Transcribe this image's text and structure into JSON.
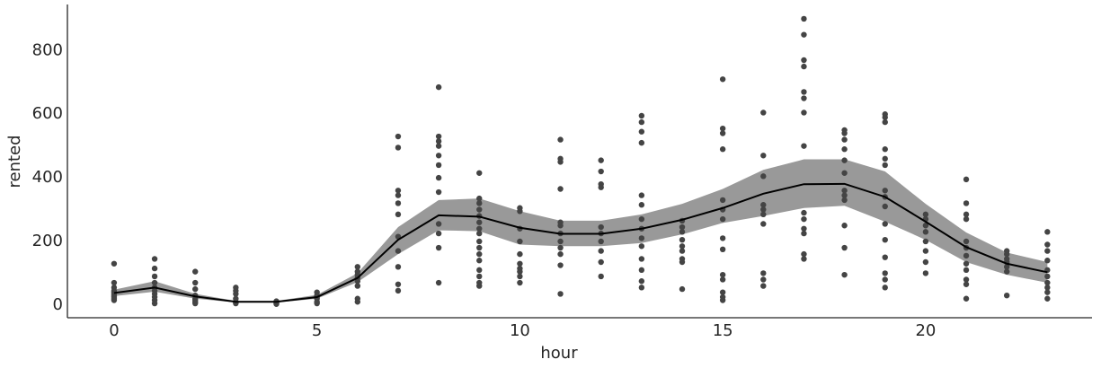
{
  "chart_data": {
    "type": "line",
    "x_label": "hour",
    "y_label": "rented",
    "x": [
      0,
      1,
      2,
      3,
      4,
      5,
      6,
      7,
      8,
      9,
      10,
      11,
      12,
      13,
      14,
      15,
      16,
      17,
      18,
      19,
      20,
      21,
      22,
      23
    ],
    "series": [
      {
        "color": "#000000",
        "values": [
          38,
          55,
          27,
          10,
          10,
          25,
          85,
          205,
          282,
          278,
          243,
          224,
          224,
          240,
          268,
          305,
          350,
          380,
          381,
          340,
          262,
          182,
          130,
          103
        ]
      }
    ],
    "band": {
      "color": "#999999",
      "lower": [
        28,
        42,
        20,
        8,
        8,
        20,
        72,
        160,
        235,
        232,
        190,
        185,
        185,
        195,
        222,
        258,
        280,
        305,
        312,
        262,
        205,
        135,
        95,
        70
      ],
      "upper": [
        48,
        75,
        35,
        13,
        13,
        32,
        100,
        245,
        330,
        335,
        295,
        265,
        265,
        285,
        318,
        365,
        425,
        458,
        458,
        420,
        318,
        228,
        165,
        135
      ]
    },
    "points": {
      "color": "#444444",
      "x": [
        0,
        0,
        0,
        0,
        0,
        0,
        0,
        0,
        0,
        0,
        1,
        1,
        1,
        1,
        1,
        1,
        1,
        1,
        1,
        1,
        2,
        2,
        2,
        2,
        2,
        2,
        2,
        2,
        3,
        3,
        3,
        3,
        3,
        3,
        4,
        4,
        4,
        4,
        5,
        5,
        5,
        5,
        5,
        5,
        6,
        6,
        6,
        6,
        6,
        6,
        6,
        6,
        7,
        7,
        7,
        7,
        7,
        7,
        7,
        7,
        7,
        7,
        7,
        8,
        8,
        8,
        8,
        8,
        8,
        8,
        8,
        8,
        8,
        8,
        8,
        9,
        9,
        9,
        9,
        9,
        9,
        9,
        9,
        9,
        9,
        9,
        9,
        9,
        9,
        9,
        9,
        10,
        10,
        10,
        10,
        10,
        10,
        10,
        10,
        10,
        10,
        11,
        11,
        11,
        11,
        11,
        11,
        11,
        11,
        11,
        11,
        11,
        11,
        12,
        12,
        12,
        12,
        12,
        12,
        12,
        12,
        12,
        12,
        13,
        13,
        13,
        13,
        13,
        13,
        13,
        13,
        13,
        13,
        13,
        13,
        13,
        13,
        14,
        14,
        14,
        14,
        14,
        14,
        14,
        14,
        14,
        15,
        15,
        15,
        15,
        15,
        15,
        15,
        15,
        15,
        15,
        15,
        15,
        15,
        15,
        16,
        16,
        16,
        16,
        16,
        16,
        16,
        16,
        16,
        16,
        17,
        17,
        17,
        17,
        17,
        17,
        17,
        17,
        17,
        17,
        17,
        17,
        17,
        17,
        18,
        18,
        18,
        18,
        18,
        18,
        18,
        18,
        18,
        18,
        18,
        18,
        19,
        19,
        19,
        19,
        19,
        19,
        19,
        19,
        19,
        19,
        19,
        19,
        19,
        19,
        19,
        20,
        20,
        20,
        20,
        20,
        20,
        20,
        20,
        21,
        21,
        21,
        21,
        21,
        21,
        21,
        21,
        21,
        21,
        21,
        21,
        22,
        22,
        22,
        22,
        22,
        22,
        22,
        23,
        23,
        23,
        23,
        23,
        23,
        23,
        23,
        23,
        23
      ],
      "y": [
        130,
        70,
        55,
        45,
        40,
        35,
        30,
        25,
        20,
        15,
        145,
        115,
        90,
        70,
        55,
        45,
        35,
        25,
        15,
        5,
        105,
        70,
        50,
        30,
        20,
        15,
        10,
        5,
        55,
        45,
        35,
        20,
        10,
        5,
        12,
        8,
        5,
        3,
        40,
        30,
        25,
        20,
        10,
        5,
        120,
        105,
        95,
        85,
        75,
        60,
        20,
        10,
        530,
        495,
        360,
        345,
        320,
        285,
        215,
        170,
        120,
        65,
        45,
        685,
        530,
        515,
        500,
        470,
        440,
        400,
        355,
        255,
        225,
        180,
        70,
        415,
        335,
        320,
        300,
        280,
        260,
        240,
        225,
        200,
        180,
        160,
        140,
        110,
        90,
        70,
        60,
        305,
        295,
        240,
        200,
        160,
        130,
        115,
        105,
        90,
        70,
        520,
        460,
        450,
        365,
        260,
        250,
        225,
        200,
        180,
        160,
        125,
        35,
        455,
        420,
        380,
        370,
        245,
        225,
        200,
        170,
        135,
        90,
        595,
        575,
        545,
        510,
        345,
        315,
        270,
        240,
        210,
        185,
        145,
        110,
        75,
        55,
        265,
        245,
        230,
        205,
        185,
        170,
        145,
        135,
        50,
        710,
        555,
        540,
        490,
        330,
        300,
        270,
        210,
        175,
        95,
        80,
        40,
        25,
        15,
        605,
        470,
        405,
        315,
        300,
        285,
        255,
        100,
        80,
        60,
        900,
        850,
        770,
        750,
        670,
        650,
        605,
        500,
        290,
        270,
        240,
        225,
        160,
        145,
        550,
        540,
        520,
        490,
        455,
        415,
        360,
        345,
        330,
        250,
        180,
        95,
        600,
        590,
        575,
        490,
        460,
        440,
        360,
        340,
        310,
        255,
        205,
        150,
        100,
        80,
        55,
        285,
        270,
        250,
        230,
        200,
        170,
        135,
        100,
        395,
        320,
        285,
        270,
        200,
        180,
        155,
        130,
        110,
        80,
        65,
        20,
        170,
        160,
        145,
        135,
        120,
        105,
        30,
        230,
        190,
        170,
        140,
        110,
        90,
        70,
        55,
        40,
        20
      ]
    },
    "xlim": [
      -1.15,
      24.1
    ],
    "ylim": [
      -40,
      945
    ],
    "xticks": [
      0,
      5,
      10,
      15,
      20
    ],
    "yticks": [
      0,
      200,
      400,
      600,
      800
    ],
    "grid": false
  }
}
